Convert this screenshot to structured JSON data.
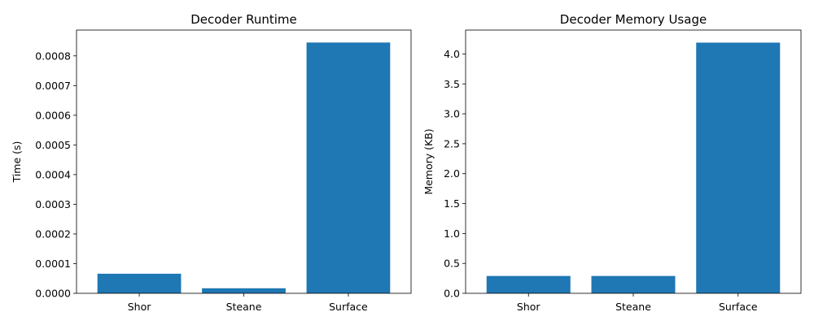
{
  "chart_data": [
    {
      "type": "bar",
      "title": "Decoder Runtime",
      "xlabel": "",
      "ylabel": "Time (s)",
      "categories": [
        "Shor",
        "Steane",
        "Surface"
      ],
      "values": [
        6.6e-05,
        1.7e-05,
        0.000845
      ],
      "ylim": [
        0,
        0.000887
      ],
      "yticks": [
        "0.0000",
        "0.0001",
        "0.0002",
        "0.0003",
        "0.0004",
        "0.0005",
        "0.0006",
        "0.0007",
        "0.0008"
      ],
      "ytick_values": [
        0,
        0.0001,
        0.0002,
        0.0003,
        0.0004,
        0.0005,
        0.0006,
        0.0007,
        0.0008
      ],
      "grid": false,
      "bar_color": "#1f77b4"
    },
    {
      "type": "bar",
      "title": "Decoder Memory Usage",
      "xlabel": "",
      "ylabel": "Memory (KB)",
      "categories": [
        "Shor",
        "Steane",
        "Surface"
      ],
      "values": [
        0.29,
        0.29,
        4.19
      ],
      "ylim": [
        0,
        4.4
      ],
      "yticks": [
        "0.0",
        "0.5",
        "1.0",
        "1.5",
        "2.0",
        "2.5",
        "3.0",
        "3.5",
        "4.0"
      ],
      "ytick_values": [
        0,
        0.5,
        1.0,
        1.5,
        2.0,
        2.5,
        3.0,
        3.5,
        4.0
      ],
      "grid": false,
      "bar_color": "#1f77b4"
    }
  ]
}
